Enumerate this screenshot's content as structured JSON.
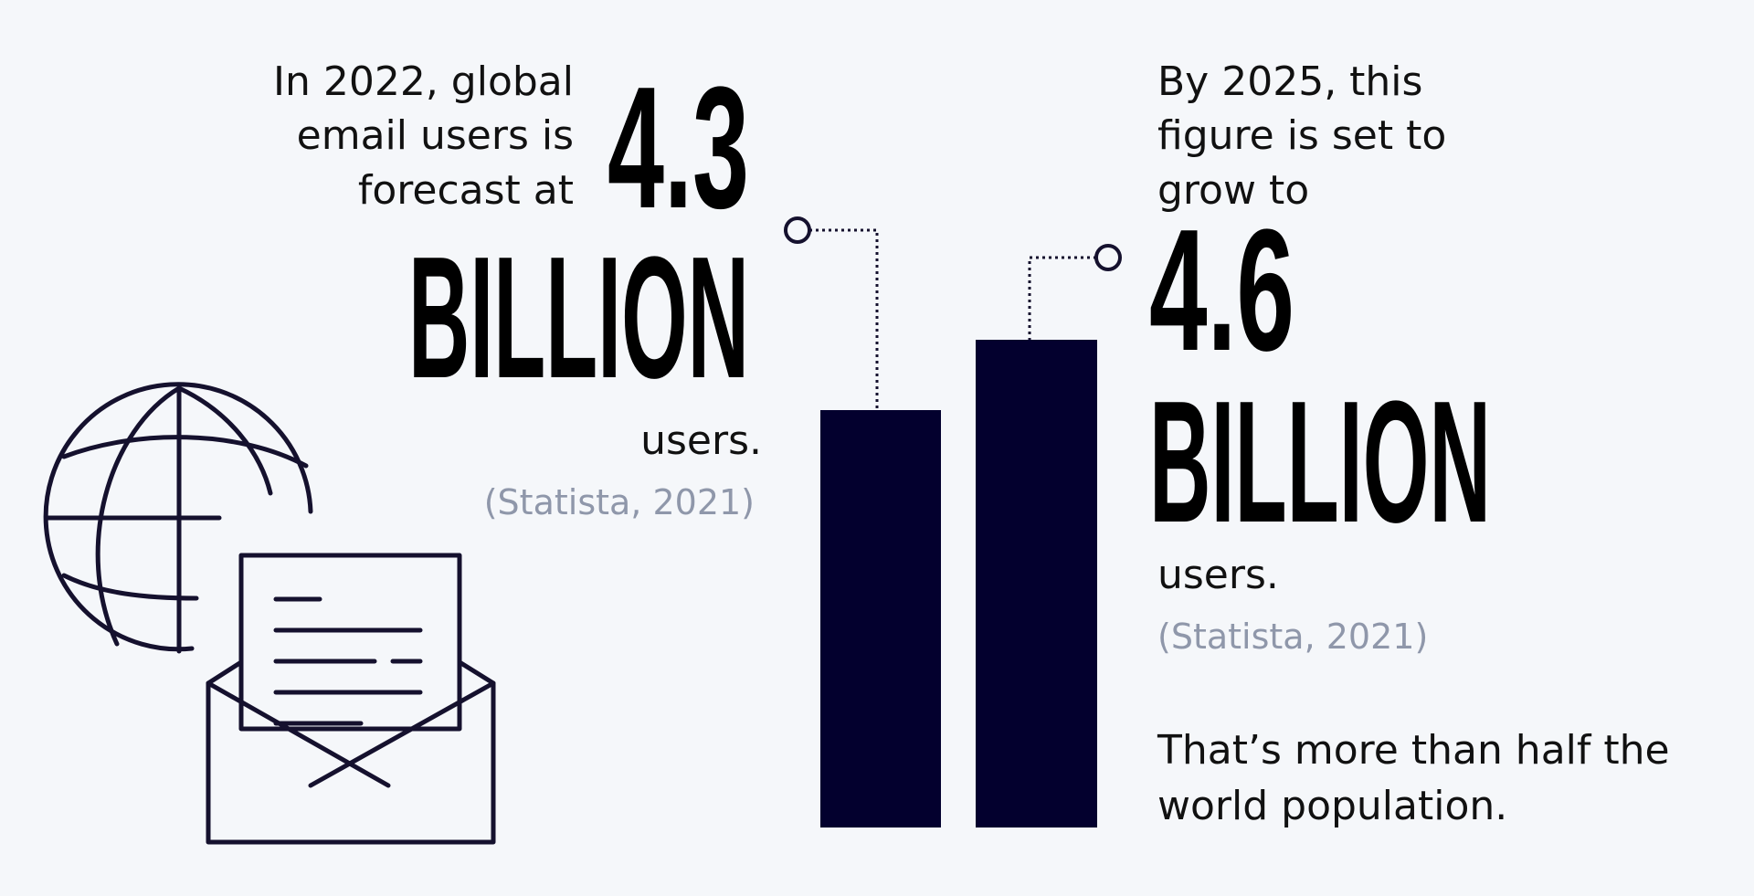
{
  "left": {
    "intro_lines": [
      "In 2022, global",
      "email users is",
      "forecast at"
    ],
    "figure": "4.3",
    "unit": "BILLION",
    "suffix": "users.",
    "source": "(Statista, 2021)"
  },
  "right": {
    "intro_lines": [
      "By 2025, this",
      "figure is set to",
      "grow to"
    ],
    "figure": "4.6",
    "unit": "BILLION",
    "suffix": "users.",
    "source": "(Statista, 2021)"
  },
  "footnote_lines": [
    "That’s more than half the",
    "world population."
  ]
}
